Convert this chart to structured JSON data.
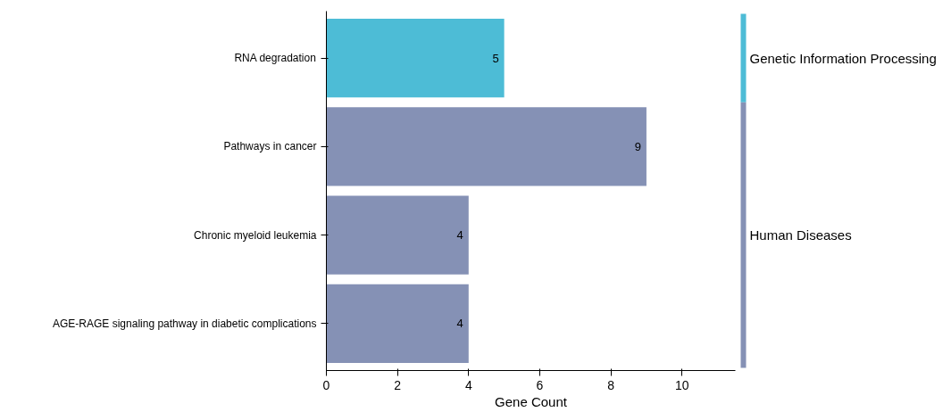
{
  "chart_data": {
    "type": "bar",
    "orientation": "horizontal",
    "xlabel": "Gene Count",
    "categories": [
      "RNA degradation",
      "Pathways in cancer",
      "Chronic myeloid leukemia",
      "AGE-RAGE signaling pathway in diabetic complications"
    ],
    "series": [
      {
        "name": "Genetic Information Processing",
        "color": "#4dbcd6",
        "values": [
          5,
          null,
          null,
          null
        ]
      },
      {
        "name": "Human Diseases",
        "color": "#8591b5",
        "values": [
          null,
          9,
          4,
          4
        ]
      }
    ],
    "xlim": [
      0,
      11.5
    ],
    "xticks": [
      0,
      2,
      4,
      6,
      8,
      10
    ],
    "data_labels": true,
    "grid": false,
    "legend": "right"
  }
}
